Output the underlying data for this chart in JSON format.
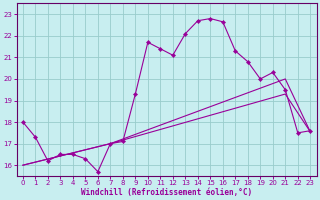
{
  "xlabel": "Windchill (Refroidissement éolien,°C)",
  "background_color": "#c8eef0",
  "grid_color": "#99cccc",
  "line_color": "#990099",
  "spine_color": "#660066",
  "xlim": [
    -0.5,
    23.5
  ],
  "ylim": [
    15.5,
    23.5
  ],
  "yticks": [
    16,
    17,
    18,
    19,
    20,
    21,
    22,
    23
  ],
  "xticks": [
    0,
    1,
    2,
    3,
    4,
    5,
    6,
    7,
    8,
    9,
    10,
    11,
    12,
    13,
    14,
    15,
    16,
    17,
    18,
    19,
    20,
    21,
    22,
    23
  ],
  "line1_x": [
    0,
    1,
    2,
    3,
    4,
    5,
    6,
    7,
    8,
    9,
    10,
    11,
    12,
    13,
    14,
    15,
    16,
    17,
    18,
    19,
    20,
    21,
    22,
    23
  ],
  "line1_y": [
    18.0,
    17.3,
    16.2,
    16.5,
    16.5,
    16.3,
    15.7,
    17.0,
    17.1,
    19.3,
    21.7,
    21.4,
    21.1,
    22.1,
    22.7,
    22.8,
    22.65,
    21.3,
    20.8,
    20.0,
    20.3,
    19.5,
    17.5,
    17.6
  ],
  "line2_x": [
    0,
    7,
    21,
    23
  ],
  "line2_y": [
    16.0,
    17.0,
    20.0,
    17.55
  ],
  "line3_x": [
    0,
    7,
    21,
    23
  ],
  "line3_y": [
    16.0,
    17.0,
    19.3,
    17.55
  ]
}
